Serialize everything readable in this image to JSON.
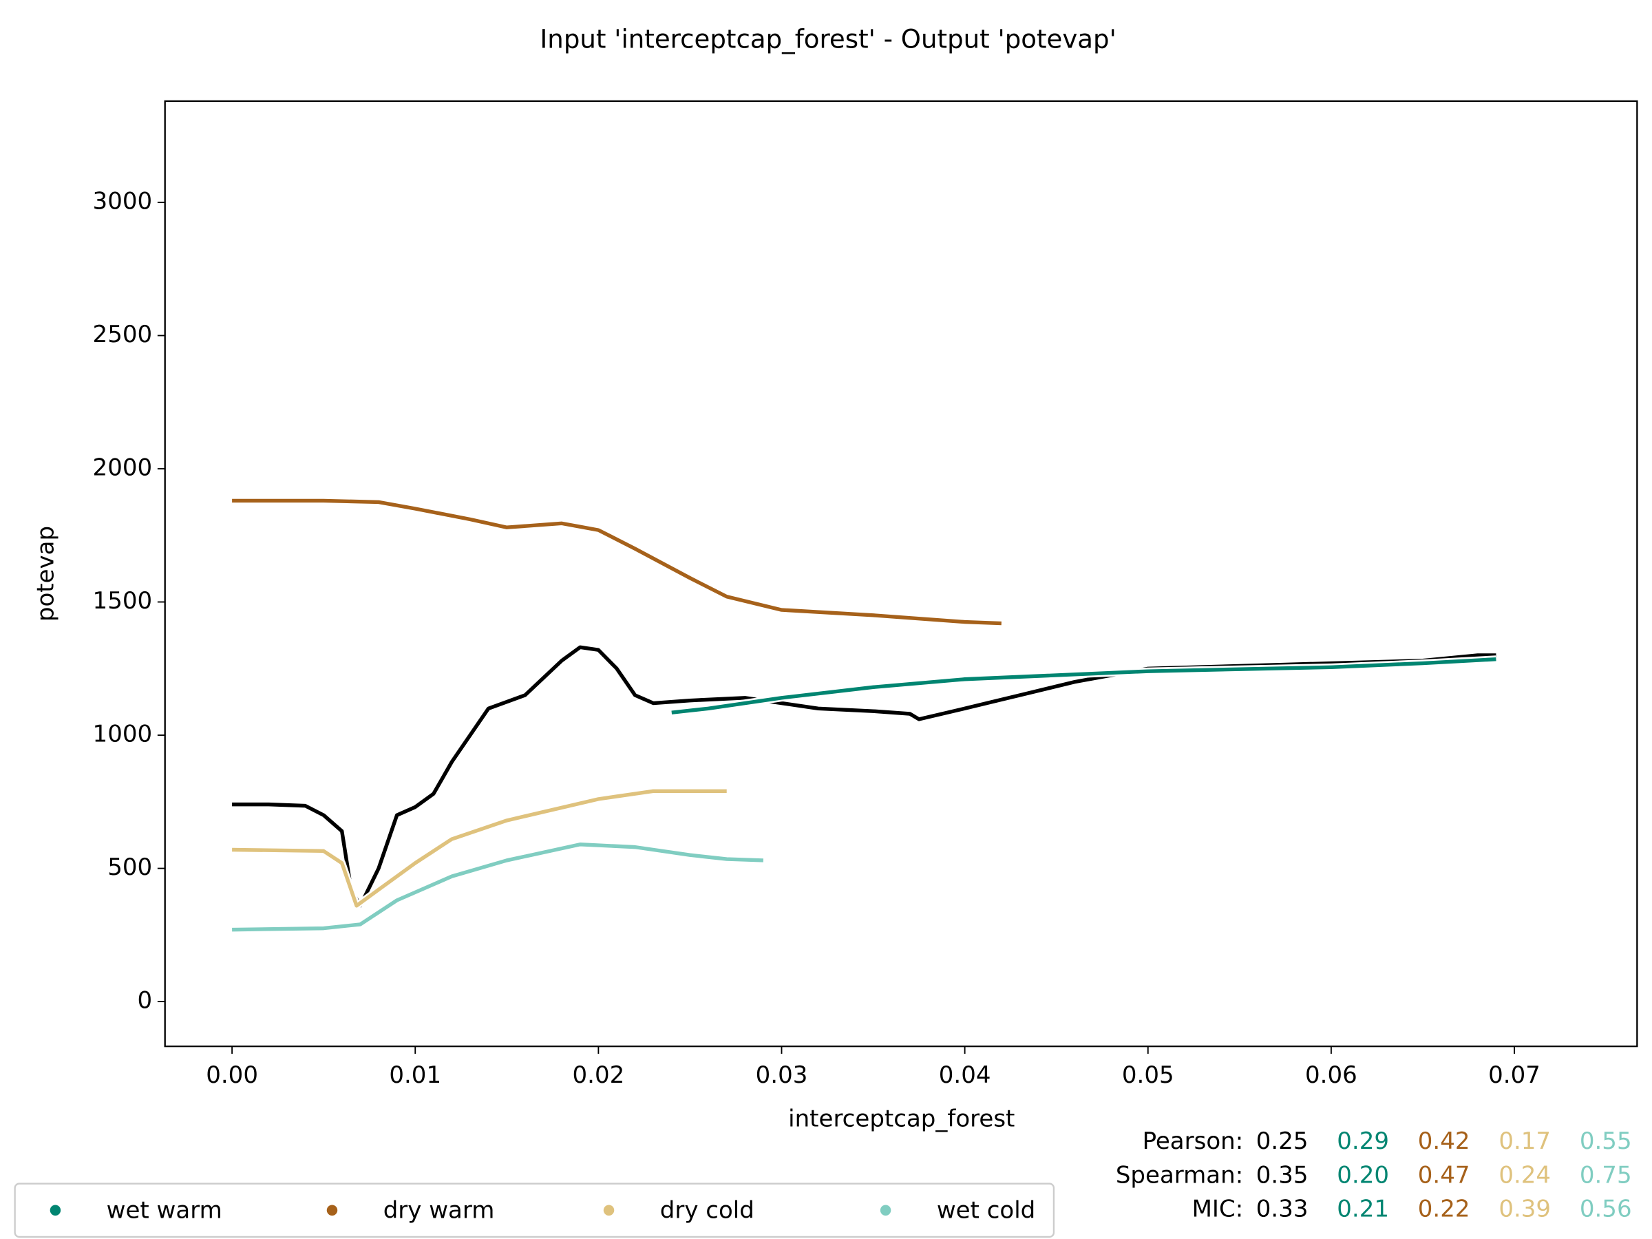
{
  "chart_data": {
    "type": "line",
    "title": "Input 'interceptcap_forest' - Output 'potevap'",
    "x_label": "interceptcap_forest",
    "y_label": "potevap",
    "xlim": [
      -0.00366,
      0.0767
    ],
    "ylim": [
      -168,
      3380
    ],
    "xticks": [
      {
        "value": 0,
        "label": "0.00"
      },
      0.01,
      0.02,
      0.03,
      0.04,
      0.05,
      0.06,
      0.07
    ],
    "yticks": [
      0,
      500,
      1000,
      1500,
      2000,
      2500,
      3000
    ],
    "series": [
      {
        "color": "#000000",
        "x": [
          0,
          0.002,
          0.004,
          0.005,
          0.006,
          0.0065,
          0.007,
          0.008,
          0.009,
          0.01,
          0.011,
          0.012,
          0.014,
          0.016,
          0.018,
          0.019,
          0.02,
          0.021,
          0.022,
          0.023,
          0.025,
          0.028,
          0.03,
          0.032,
          0.035,
          0.037,
          0.0375,
          0.04,
          0.043,
          0.046,
          0.05,
          0.055,
          0.06,
          0.065,
          0.068,
          0.069
        ],
        "values": [
          740,
          740,
          735,
          700,
          640,
          420,
          360,
          500,
          700,
          730,
          780,
          900,
          1100,
          1150,
          1280,
          1330,
          1320,
          1250,
          1150,
          1120,
          1130,
          1140,
          1120,
          1100,
          1090,
          1080,
          1060,
          1100,
          1150,
          1200,
          1250,
          1260,
          1270,
          1280,
          1300,
          1300
        ]
      },
      {
        "name": "wet warm",
        "color": "#018571",
        "x": [
          0.024,
          0.026,
          0.03,
          0.035,
          0.04,
          0.05,
          0.06,
          0.065,
          0.069
        ],
        "values": [
          1085,
          1100,
          1140,
          1180,
          1210,
          1240,
          1255,
          1270,
          1285
        ]
      },
      {
        "name": "dry warm",
        "color": "#a6611a",
        "x": [
          0,
          0.005,
          0.008,
          0.01,
          0.013,
          0.015,
          0.018,
          0.02,
          0.022,
          0.025,
          0.027,
          0.03,
          0.035,
          0.04,
          0.042
        ],
        "values": [
          1880,
          1880,
          1875,
          1850,
          1810,
          1780,
          1795,
          1770,
          1700,
          1590,
          1520,
          1470,
          1450,
          1425,
          1420
        ]
      },
      {
        "name": "dry cold",
        "color": "#dfc27d",
        "x": [
          0,
          0.005,
          0.006,
          0.0068,
          0.008,
          0.01,
          0.012,
          0.015,
          0.02,
          0.023,
          0.027
        ],
        "values": [
          570,
          565,
          520,
          360,
          420,
          520,
          610,
          680,
          760,
          790,
          790
        ]
      },
      {
        "name": "wet cold",
        "color": "#80cdc1",
        "x": [
          0,
          0.005,
          0.007,
          0.009,
          0.012,
          0.015,
          0.019,
          0.022,
          0.025,
          0.027,
          0.029
        ],
        "values": [
          270,
          275,
          290,
          380,
          470,
          530,
          590,
          580,
          550,
          535,
          530
        ]
      }
    ],
    "stats": [
      {
        "label": "Pearson:",
        "values": [
          "0.25",
          "0.29",
          "0.42",
          "0.17",
          "0.55"
        ]
      },
      {
        "label": "Spearman:",
        "values": [
          "0.35",
          "0.20",
          "0.47",
          "0.24",
          "0.75"
        ]
      },
      {
        "label": "MIC:",
        "values": [
          "0.33",
          "0.21",
          "0.22",
          "0.39",
          "0.56"
        ]
      }
    ]
  }
}
